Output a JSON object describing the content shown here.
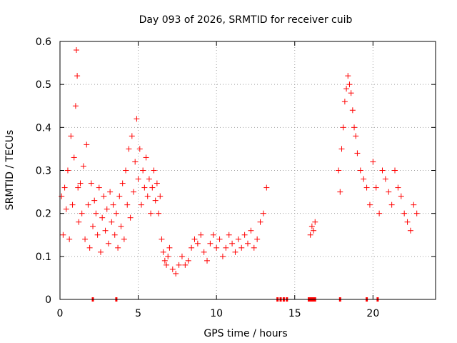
{
  "chart_data": {
    "type": "scatter",
    "title": "Day 093 of 2026, SRMTID for receiver cuib",
    "xlabel": "GPS time / hours",
    "ylabel": "SRMTID / TECUs",
    "xlim": [
      0,
      24
    ],
    "ylim": [
      0,
      0.6
    ],
    "x_ticks": [
      0,
      5,
      10,
      15,
      20
    ],
    "y_ticks": [
      0,
      0.1,
      0.2,
      0.3,
      0.4,
      0.5,
      0.6
    ],
    "x_tick_labels": [
      "0",
      "5",
      "10",
      "15",
      "20"
    ],
    "y_tick_labels": [
      "0",
      "0.1",
      "0.2",
      "0.3",
      "0.4",
      "0.5",
      "0.6"
    ],
    "grid": true,
    "legend": "none",
    "marker": "plus",
    "color": "#ff0000",
    "series": [
      {
        "name": "SRMTID",
        "x": [
          0.1,
          0.2,
          0.3,
          0.4,
          0.5,
          0.6,
          0.7,
          0.8,
          0.9,
          1.0,
          1.05,
          1.1,
          1.15,
          1.2,
          1.3,
          1.4,
          1.5,
          1.6,
          1.7,
          1.8,
          1.9,
          2.0,
          2.1,
          2.2,
          2.3,
          2.4,
          2.5,
          2.6,
          2.7,
          2.8,
          2.9,
          3.0,
          3.1,
          3.2,
          3.3,
          3.4,
          3.5,
          3.6,
          3.7,
          3.8,
          3.9,
          4.0,
          4.1,
          4.2,
          4.3,
          4.4,
          4.5,
          4.6,
          4.7,
          4.8,
          4.9,
          5.0,
          5.1,
          5.2,
          5.3,
          5.4,
          5.5,
          5.6,
          5.7,
          5.8,
          5.9,
          6.0,
          6.1,
          6.2,
          6.3,
          6.4,
          6.5,
          6.6,
          6.7,
          6.8,
          6.9,
          7.0,
          7.2,
          7.4,
          7.6,
          7.8,
          8.0,
          8.2,
          8.4,
          8.6,
          8.8,
          9.0,
          9.2,
          9.4,
          9.6,
          9.8,
          10.0,
          10.2,
          10.4,
          10.6,
          10.8,
          11.0,
          11.2,
          11.4,
          11.6,
          11.8,
          12.0,
          12.2,
          12.4,
          12.6,
          12.8,
          13.0,
          13.2,
          16.0,
          16.1,
          16.2,
          16.3,
          17.8,
          17.9,
          18.0,
          18.1,
          18.2,
          18.3,
          18.4,
          18.5,
          18.6,
          18.7,
          18.8,
          18.9,
          19.0,
          19.2,
          19.4,
          19.6,
          19.8,
          20.0,
          20.2,
          20.4,
          20.6,
          20.8,
          21.0,
          21.2,
          21.4,
          21.6,
          21.8,
          22.0,
          22.2,
          22.4,
          22.6,
          22.8
        ],
        "y": [
          0.24,
          0.15,
          0.26,
          0.21,
          0.3,
          0.14,
          0.38,
          0.22,
          0.33,
          0.45,
          0.58,
          0.52,
          0.26,
          0.18,
          0.27,
          0.2,
          0.31,
          0.14,
          0.36,
          0.22,
          0.12,
          0.27,
          0.17,
          0.23,
          0.2,
          0.15,
          0.26,
          0.11,
          0.19,
          0.24,
          0.16,
          0.21,
          0.13,
          0.25,
          0.18,
          0.22,
          0.15,
          0.2,
          0.12,
          0.24,
          0.17,
          0.27,
          0.14,
          0.3,
          0.22,
          0.35,
          0.19,
          0.38,
          0.25,
          0.32,
          0.42,
          0.28,
          0.35,
          0.22,
          0.3,
          0.26,
          0.33,
          0.24,
          0.28,
          0.2,
          0.26,
          0.3,
          0.23,
          0.27,
          0.2,
          0.24,
          0.14,
          0.11,
          0.09,
          0.08,
          0.1,
          0.12,
          0.07,
          0.06,
          0.08,
          0.1,
          0.08,
          0.09,
          0.12,
          0.14,
          0.13,
          0.15,
          0.11,
          0.09,
          0.13,
          0.15,
          0.12,
          0.14,
          0.1,
          0.12,
          0.15,
          0.13,
          0.11,
          0.14,
          0.12,
          0.15,
          0.13,
          0.16,
          0.12,
          0.14,
          0.18,
          0.2,
          0.26,
          0.15,
          0.17,
          0.16,
          0.18,
          0.3,
          0.25,
          0.35,
          0.4,
          0.46,
          0.49,
          0.52,
          0.5,
          0.48,
          0.44,
          0.4,
          0.38,
          0.34,
          0.3,
          0.28,
          0.26,
          0.22,
          0.32,
          0.26,
          0.2,
          0.3,
          0.28,
          0.25,
          0.22,
          0.3,
          0.26,
          0.24,
          0.2,
          0.18,
          0.16,
          0.22,
          0.2
        ]
      }
    ],
    "baseline_marks_x": [
      2.1,
      3.6,
      13.9,
      14.1,
      14.3,
      14.5,
      15.9,
      16.0,
      16.1,
      16.2,
      16.3,
      17.9,
      19.6,
      20.3
    ]
  }
}
